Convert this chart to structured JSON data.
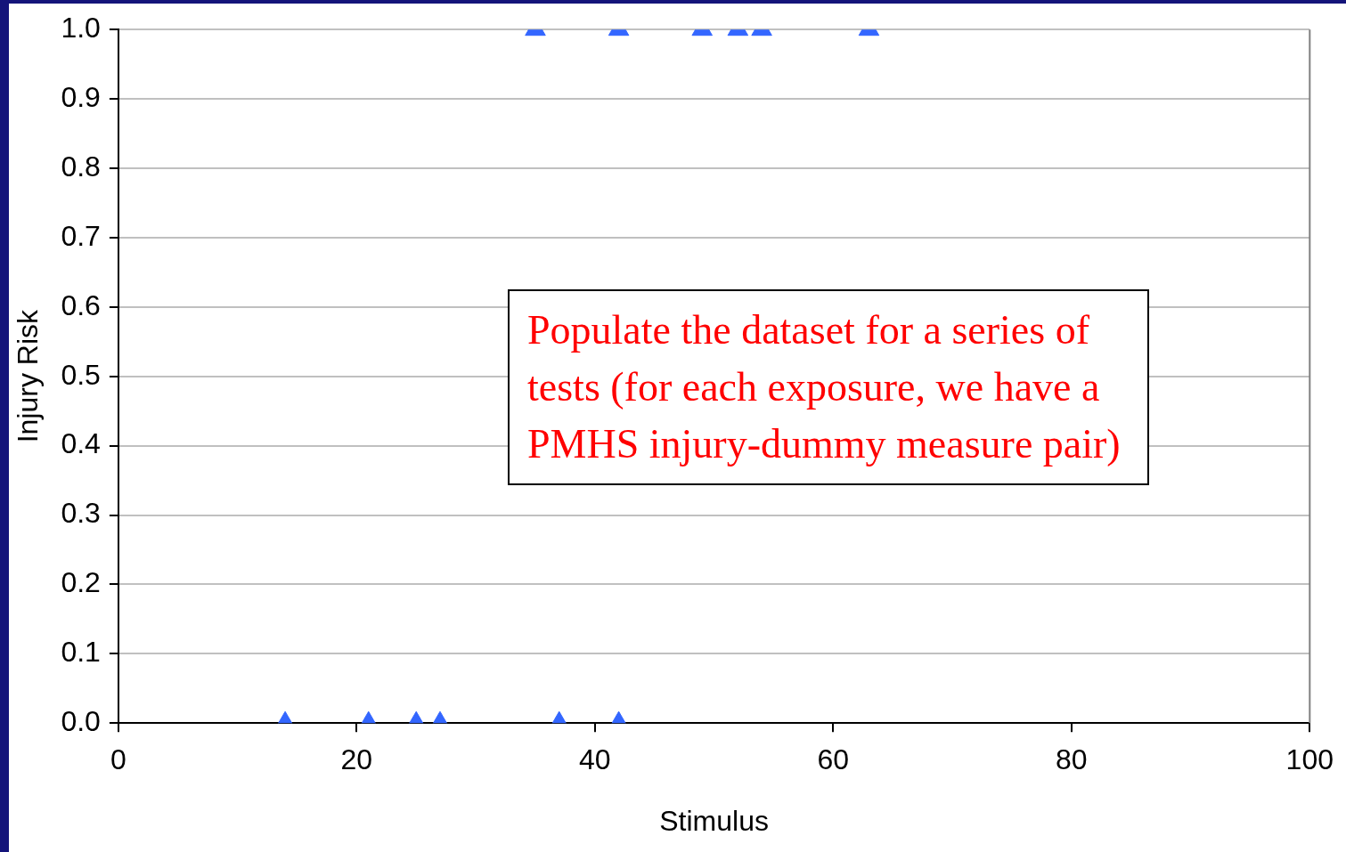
{
  "chart_data": {
    "type": "scatter",
    "xlabel": "Stimulus",
    "ylabel": "Injury Risk",
    "series": [
      {
        "color": "#3366ff",
        "x": [
          35,
          42,
          49,
          52,
          54,
          63,
          14,
          21,
          25,
          27,
          37,
          42
        ],
        "values": [
          1,
          1,
          1,
          1,
          1,
          1,
          0,
          0,
          0,
          0,
          0,
          0
        ]
      }
    ],
    "xlim": [
      0,
      100
    ],
    "xticks": [
      0,
      20,
      40,
      60,
      80,
      100
    ],
    "ylim": [
      0,
      1
    ],
    "yticks": [
      {
        "value": 0,
        "label": "0.0"
      },
      {
        "value": 0.1,
        "label": "0.1"
      },
      {
        "value": 0.2,
        "label": "0.2"
      },
      {
        "value": 0.3,
        "label": "0.3"
      },
      {
        "value": 0.4,
        "label": "0.4"
      },
      {
        "value": 0.5,
        "label": "0.5"
      },
      {
        "value": 0.6,
        "label": "0.6"
      },
      {
        "value": 0.7,
        "label": "0.7"
      },
      {
        "value": 0.8,
        "label": "0.8"
      },
      {
        "value": 0.9,
        "label": "0.9"
      },
      {
        "value": 1,
        "label": "1.0"
      }
    ],
    "grid": "y",
    "marker": "triangle",
    "annotations": [
      "Populate the dataset for a series of tests (for each exposure, we have a PMHS injury-dummy measure pair)"
    ]
  }
}
